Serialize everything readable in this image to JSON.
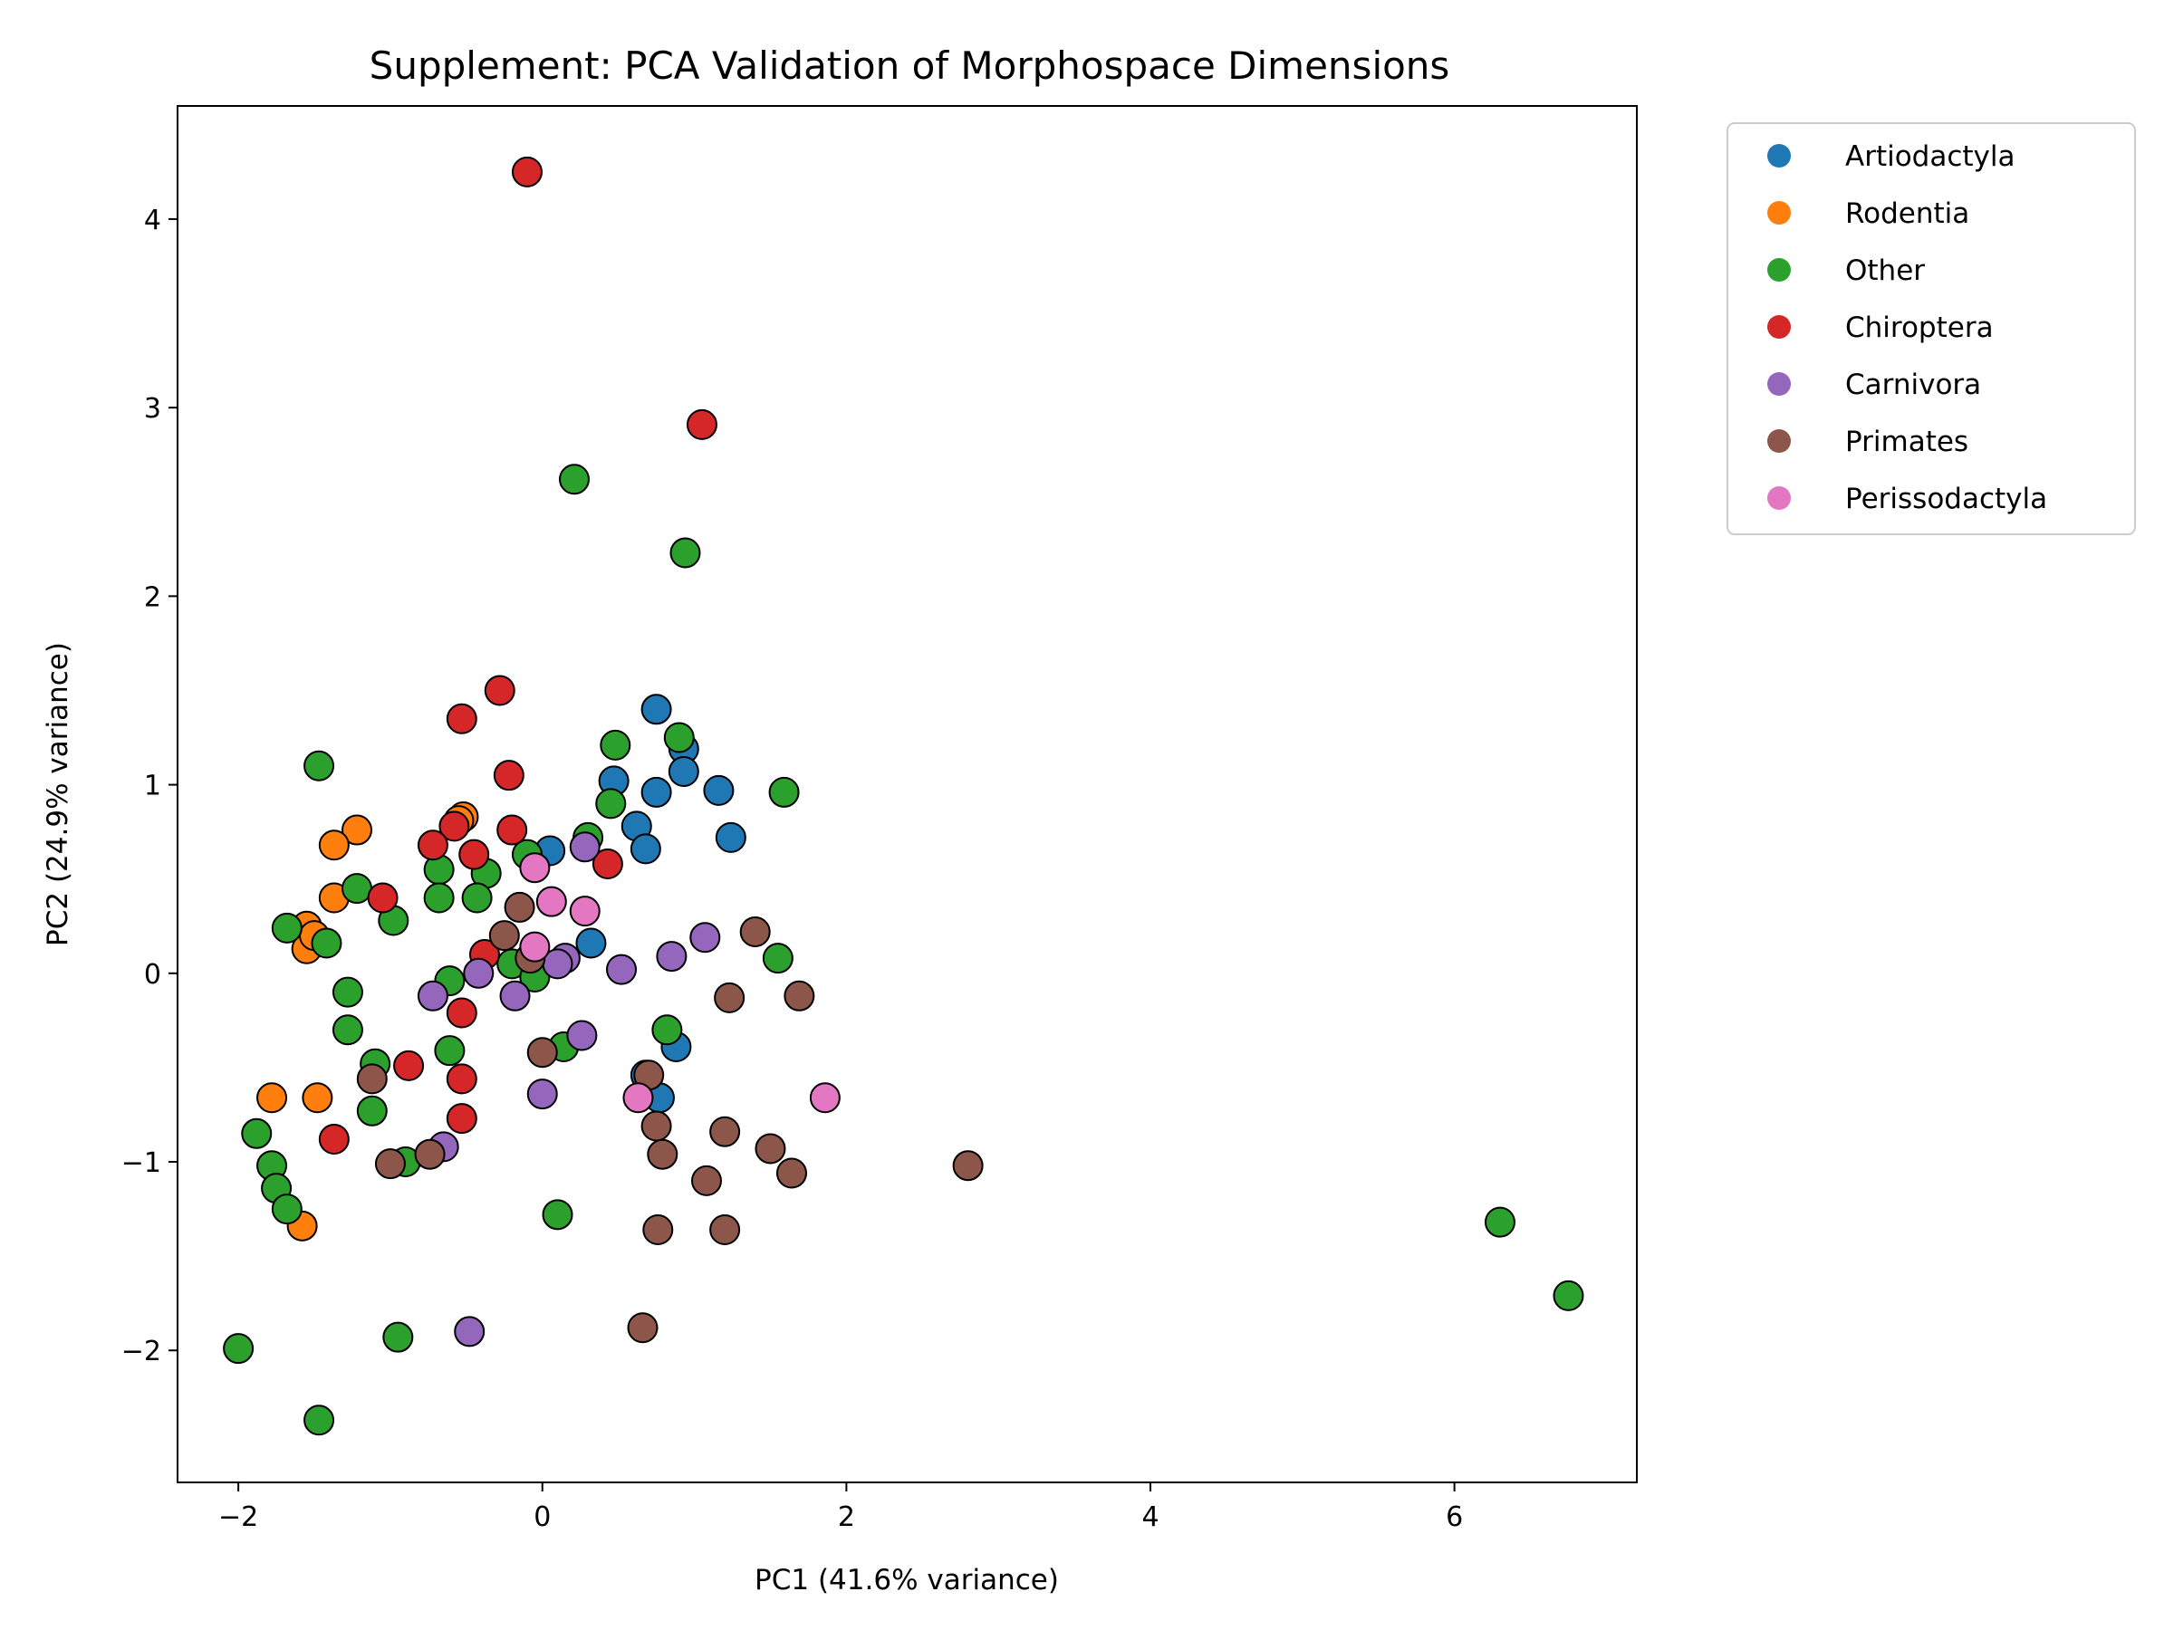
{
  "chart_data": {
    "type": "scatter",
    "title": "Supplement: PCA Validation of Morphospace Dimensions",
    "xlabel": "PC1 (41.6% variance)",
    "ylabel": "PC2 (24.9% variance)",
    "xlim": [
      -2.4,
      7.2
    ],
    "ylim": [
      -2.7,
      4.6
    ],
    "xticks": [
      -2,
      0,
      2,
      4,
      6
    ],
    "xtick_labels": [
      "−2",
      "0",
      "2",
      "4",
      "6"
    ],
    "yticks": [
      -2,
      -1,
      0,
      1,
      2,
      3,
      4
    ],
    "ytick_labels": [
      "−2",
      "−1",
      "0",
      "1",
      "2",
      "3",
      "4"
    ],
    "grid": false,
    "legend_position": "outside-top-right",
    "series": [
      {
        "name": "Artiodactyla",
        "color": "#1f77b4",
        "points": [
          [
            0.75,
            1.4
          ],
          [
            0.93,
            1.19
          ],
          [
            0.93,
            1.07
          ],
          [
            1.16,
            0.97
          ],
          [
            1.24,
            0.72
          ],
          [
            0.47,
            1.02
          ],
          [
            0.75,
            0.96
          ],
          [
            0.62,
            0.78
          ],
          [
            0.68,
            0.66
          ],
          [
            0.05,
            0.65
          ],
          [
            0.32,
            0.16
          ],
          [
            0.88,
            -0.39
          ],
          [
            0.68,
            -0.54
          ],
          [
            0.77,
            -0.66
          ]
        ]
      },
      {
        "name": "Rodentia",
        "color": "#ff7f0e",
        "points": [
          [
            -1.22,
            0.76
          ],
          [
            -1.37,
            0.68
          ],
          [
            -1.37,
            0.4
          ],
          [
            -1.55,
            0.25
          ],
          [
            -1.55,
            0.13
          ],
          [
            -1.5,
            0.2
          ],
          [
            -1.78,
            -0.66
          ],
          [
            -1.48,
            -0.66
          ],
          [
            -1.58,
            -1.34
          ],
          [
            -0.52,
            0.83
          ],
          [
            -0.55,
            0.81
          ]
        ]
      },
      {
        "name": "Other",
        "color": "#2ca02c",
        "points": [
          [
            0.21,
            2.62
          ],
          [
            0.94,
            2.23
          ],
          [
            0.48,
            1.21
          ],
          [
            0.9,
            1.25
          ],
          [
            1.59,
            0.96
          ],
          [
            0.45,
            0.9
          ],
          [
            0.3,
            0.72
          ],
          [
            -1.47,
            1.1
          ],
          [
            -1.22,
            0.45
          ],
          [
            -0.98,
            0.28
          ],
          [
            -1.68,
            0.24
          ],
          [
            -1.42,
            0.16
          ],
          [
            -0.68,
            0.55
          ],
          [
            -0.68,
            0.4
          ],
          [
            -0.37,
            0.53
          ],
          [
            -0.43,
            0.4
          ],
          [
            -0.1,
            0.63
          ],
          [
            -0.61,
            -0.04
          ],
          [
            -0.2,
            0.05
          ],
          [
            -0.05,
            -0.02
          ],
          [
            -1.28,
            -0.1
          ],
          [
            -1.28,
            -0.3
          ],
          [
            -1.1,
            -0.48
          ],
          [
            -0.61,
            -0.41
          ],
          [
            -1.12,
            -0.73
          ],
          [
            -0.9,
            -1.0
          ],
          [
            -1.88,
            -0.85
          ],
          [
            -1.78,
            -1.02
          ],
          [
            -1.75,
            -1.14
          ],
          [
            -1.68,
            -1.25
          ],
          [
            0.82,
            -0.3
          ],
          [
            0.14,
            -0.39
          ],
          [
            0.1,
            -1.28
          ],
          [
            -0.95,
            -1.93
          ],
          [
            -2.0,
            -1.99
          ],
          [
            -1.47,
            -2.37
          ],
          [
            1.55,
            0.08
          ],
          [
            6.3,
            -1.32
          ],
          [
            6.75,
            -1.71
          ]
        ]
      },
      {
        "name": "Chiroptera",
        "color": "#d62728",
        "points": [
          [
            -0.1,
            4.25
          ],
          [
            1.05,
            2.91
          ],
          [
            -0.28,
            1.5
          ],
          [
            -0.53,
            1.35
          ],
          [
            -0.22,
            1.05
          ],
          [
            -0.58,
            0.78
          ],
          [
            -0.72,
            0.68
          ],
          [
            -0.45,
            0.63
          ],
          [
            -0.2,
            0.76
          ],
          [
            0.43,
            0.58
          ],
          [
            -1.05,
            0.4
          ],
          [
            -0.38,
            0.1
          ],
          [
            -0.53,
            -0.21
          ],
          [
            -0.53,
            -0.56
          ],
          [
            -0.53,
            -0.77
          ],
          [
            -0.88,
            -0.49
          ],
          [
            -1.37,
            -0.88
          ]
        ]
      },
      {
        "name": "Carnivora",
        "color": "#9467bd",
        "points": [
          [
            0.28,
            0.67
          ],
          [
            0.52,
            0.02
          ],
          [
            0.85,
            0.09
          ],
          [
            1.07,
            0.19
          ],
          [
            0.15,
            0.08
          ],
          [
            0.1,
            0.05
          ],
          [
            -0.42,
            0.0
          ],
          [
            -0.18,
            -0.12
          ],
          [
            -0.72,
            -0.12
          ],
          [
            0.26,
            -0.33
          ],
          [
            0.0,
            -0.64
          ],
          [
            -0.65,
            -0.92
          ],
          [
            -0.48,
            -1.9
          ]
        ]
      },
      {
        "name": "Primates",
        "color": "#8c564b",
        "points": [
          [
            1.4,
            0.22
          ],
          [
            1.23,
            -0.13
          ],
          [
            1.69,
            -0.12
          ],
          [
            -0.25,
            0.2
          ],
          [
            -0.15,
            0.35
          ],
          [
            -0.08,
            0.08
          ],
          [
            0.0,
            -0.42
          ],
          [
            -1.12,
            -0.56
          ],
          [
            -1.0,
            -1.01
          ],
          [
            -0.74,
            -0.96
          ],
          [
            0.7,
            -0.54
          ],
          [
            0.75,
            -0.81
          ],
          [
            0.79,
            -0.96
          ],
          [
            0.76,
            -1.36
          ],
          [
            1.2,
            -0.84
          ],
          [
            1.5,
            -0.93
          ],
          [
            1.64,
            -1.06
          ],
          [
            1.08,
            -1.1
          ],
          [
            1.2,
            -1.36
          ],
          [
            2.8,
            -1.02
          ],
          [
            0.66,
            -1.88
          ]
        ]
      },
      {
        "name": "Perissodactyla",
        "color": "#e377c2",
        "points": [
          [
            -0.05,
            0.56
          ],
          [
            0.06,
            0.38
          ],
          [
            0.28,
            0.33
          ],
          [
            -0.05,
            0.14
          ],
          [
            0.63,
            -0.66
          ],
          [
            1.86,
            -0.66
          ]
        ]
      }
    ]
  }
}
